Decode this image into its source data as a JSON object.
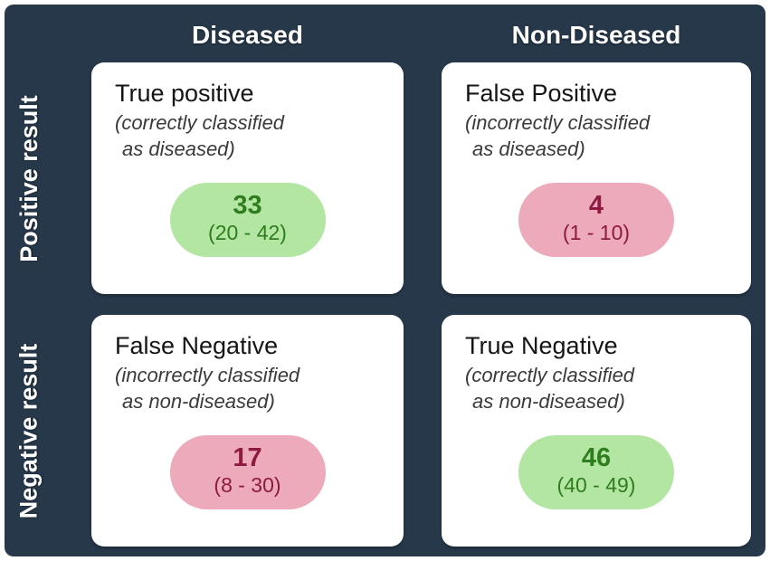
{
  "figure": {
    "type": "confusion-matrix",
    "columns": [
      {
        "label": "Diseased"
      },
      {
        "label": "Non-Diseased"
      }
    ],
    "rows": [
      {
        "label": "Positive result"
      },
      {
        "label": "Negative result"
      }
    ],
    "cells": [
      {
        "title": "True positive",
        "subtitle_line1": "(correctly classified",
        "subtitle_line2": "as diseased)",
        "value": "33",
        "range": "(20 - 42)",
        "tone": "good"
      },
      {
        "title": "False Positive",
        "subtitle_line1": "(incorrectly classified",
        "subtitle_line2": "as diseased)",
        "value": "4",
        "range": "(1 - 10)",
        "tone": "bad"
      },
      {
        "title": "False Negative",
        "subtitle_line1": "(incorrectly classified",
        "subtitle_line2": "as non-diseased)",
        "value": "17",
        "range": "(8 - 30)",
        "tone": "bad"
      },
      {
        "title": "True Negative",
        "subtitle_line1": "(correctly classified",
        "subtitle_line2": "as non-diseased)",
        "value": "46",
        "range": "(40 - 49)",
        "tone": "good"
      }
    ],
    "colors": {
      "panel_background": "#26384a",
      "card_background": "#ffffff",
      "header_text": "#ffffff",
      "positive_pill_background": "#b4e6a3",
      "positive_pill_text": "#2e7d1e",
      "negative_pill_background": "#ecaaba",
      "negative_pill_text": "#8e1a41",
      "title_text": "#151515",
      "subtitle_text": "#3a3a3a"
    }
  }
}
